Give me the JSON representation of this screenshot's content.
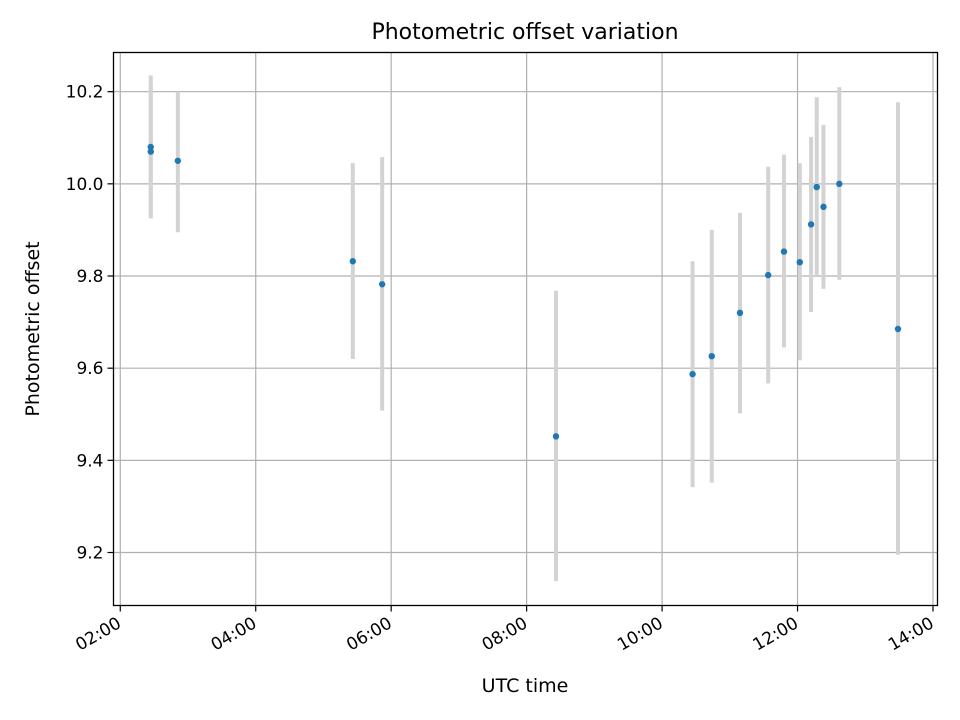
{
  "chart_data": {
    "type": "scatter",
    "title": "Photometric offset variation",
    "xlabel": "UTC time",
    "ylabel": "Photometric offset",
    "x_ticks": [
      "02:00",
      "04:00",
      "06:00",
      "08:00",
      "10:00",
      "12:00",
      "14:00"
    ],
    "y_ticks": [
      "9.2",
      "9.4",
      "9.6",
      "9.8",
      "10.0",
      "10.2"
    ],
    "xlim": [
      "01:54",
      "14:04"
    ],
    "ylim": [
      9.085,
      10.285
    ],
    "grid": true,
    "point_color": "#1f77b4",
    "errorbar_color": "#d3d3d3",
    "points": [
      {
        "x": "02:27",
        "y": 10.08,
        "ylow": 9.925,
        "yhigh": 10.235
      },
      {
        "x": "02:27",
        "y": 10.07,
        "ylow": 9.925,
        "yhigh": 10.22
      },
      {
        "x": "02:51",
        "y": 10.05,
        "ylow": 9.895,
        "yhigh": 10.2
      },
      {
        "x": "05:26",
        "y": 9.832,
        "ylow": 9.62,
        "yhigh": 10.045
      },
      {
        "x": "05:52",
        "y": 9.782,
        "ylow": 9.508,
        "yhigh": 10.058
      },
      {
        "x": "08:26",
        "y": 9.452,
        "ylow": 9.138,
        "yhigh": 9.768
      },
      {
        "x": "10:27",
        "y": 9.587,
        "ylow": 9.342,
        "yhigh": 9.832
      },
      {
        "x": "10:44",
        "y": 9.626,
        "ylow": 9.352,
        "yhigh": 9.9
      },
      {
        "x": "11:09",
        "y": 9.72,
        "ylow": 9.502,
        "yhigh": 9.937
      },
      {
        "x": "11:34",
        "y": 9.802,
        "ylow": 9.567,
        "yhigh": 10.037
      },
      {
        "x": "11:48",
        "y": 9.853,
        "ylow": 9.645,
        "yhigh": 10.063
      },
      {
        "x": "12:02",
        "y": 9.83,
        "ylow": 9.617,
        "yhigh": 10.045
      },
      {
        "x": "12:12",
        "y": 9.912,
        "ylow": 9.722,
        "yhigh": 10.102
      },
      {
        "x": "12:17",
        "y": 9.993,
        "ylow": 9.8,
        "yhigh": 10.188
      },
      {
        "x": "12:23",
        "y": 9.95,
        "ylow": 9.772,
        "yhigh": 10.128
      },
      {
        "x": "12:37",
        "y": 10.0,
        "ylow": 9.792,
        "yhigh": 10.21
      },
      {
        "x": "13:29",
        "y": 9.685,
        "ylow": 9.195,
        "yhigh": 10.177
      }
    ]
  }
}
